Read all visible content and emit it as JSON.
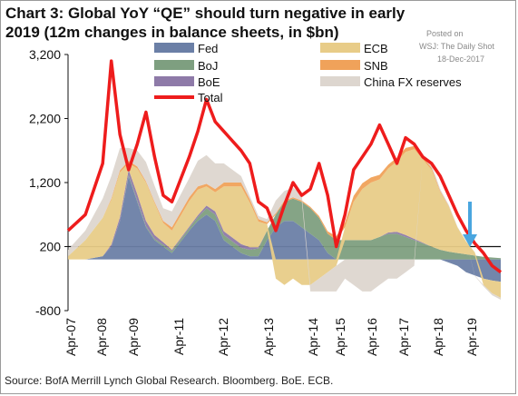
{
  "header": {
    "title": "Chart 3: Global YoY “QE” should turn negative in early 2019 (12m changes in balance sheets, in $bn)"
  },
  "watermark": {
    "posted": "Posted on",
    "outlet": "WSJ: The Daily Shot",
    "date": "18-Dec-2017"
  },
  "footer": {
    "source": "Source: BofA Merrill Lynch Global Research. Bloomberg. BoE. ECB."
  },
  "colors": {
    "fed": "#6b7fa6",
    "boj": "#7e9f80",
    "boe": "#8e7aa8",
    "ecb": "#e8cc88",
    "snb": "#f0a25a",
    "china": "#ddd6cf",
    "total": "#ee1c1c",
    "arrow": "#4aa6df"
  },
  "chart_data": {
    "type": "area",
    "stacked": true,
    "title": "Chart 3: Global YoY “QE” should turn negative in early 2019 (12m changes in balance sheets, in $bn)",
    "xlabel": "",
    "ylabel": "",
    "ylim": [
      -800,
      3200
    ],
    "yticks": [
      -800,
      200,
      1200,
      2200,
      3200
    ],
    "ytick_labels": [
      "-800",
      "200",
      "1,200",
      "2,200",
      "3,200"
    ],
    "x_tick_labels": [
      "Apr-07",
      "Apr-08",
      "Apr-09",
      "Apr-11",
      "Apr-12",
      "Apr-13",
      "Apr-14",
      "Apr-15",
      "Apr-16",
      "Apr-17",
      "Apr-18",
      "Apr-19"
    ],
    "legend": {
      "placement": "top",
      "entries": [
        "Fed",
        "BoJ",
        "BoE",
        "Total",
        "ECB",
        "SNB",
        "China FX reserves"
      ]
    },
    "annotation": "down arrow near Apr-19",
    "x": [
      "2007-04",
      "2007-10",
      "2008-04",
      "2008-07",
      "2008-10",
      "2009-01",
      "2009-04",
      "2009-07",
      "2009-10",
      "2010-01",
      "2010-04",
      "2010-10",
      "2011-01",
      "2011-04",
      "2011-07",
      "2011-10",
      "2012-04",
      "2012-07",
      "2012-10",
      "2013-01",
      "2013-04",
      "2013-07",
      "2013-10",
      "2014-01",
      "2014-04",
      "2014-07",
      "2014-10",
      "2015-01",
      "2015-04",
      "2015-07",
      "2015-10",
      "2016-01",
      "2016-04",
      "2016-07",
      "2016-10",
      "2017-01",
      "2017-04",
      "2017-07",
      "2017-10",
      "2018-01",
      "2018-04",
      "2018-07",
      "2018-10",
      "2019-01",
      "2019-04",
      "2019-07",
      "2019-10"
    ],
    "series": [
      {
        "name": "Fed",
        "values": [
          0,
          0,
          50,
          200,
          600,
          1300,
          900,
          500,
          300,
          200,
          100,
          450,
          600,
          700,
          600,
          300,
          100,
          50,
          50,
          300,
          500,
          600,
          600,
          500,
          400,
          300,
          100,
          0,
          0,
          0,
          0,
          0,
          0,
          0,
          0,
          0,
          0,
          0,
          0,
          0,
          -50,
          -100,
          -200,
          -250,
          -300,
          -330,
          -350
        ]
      },
      {
        "name": "BoJ",
        "values": [
          0,
          0,
          0,
          0,
          0,
          20,
          20,
          20,
          20,
          30,
          30,
          40,
          60,
          100,
          100,
          80,
          80,
          100,
          120,
          150,
          200,
          300,
          350,
          400,
          400,
          350,
          300,
          300,
          300,
          300,
          300,
          300,
          350,
          400,
          400,
          350,
          300,
          250,
          200,
          150,
          120,
          100,
          80,
          60,
          40,
          30,
          20
        ]
      },
      {
        "name": "BoE",
        "values": [
          0,
          0,
          0,
          30,
          60,
          80,
          100,
          80,
          60,
          40,
          20,
          20,
          30,
          40,
          50,
          60,
          60,
          40,
          20,
          0,
          0,
          0,
          0,
          0,
          0,
          0,
          0,
          0,
          0,
          0,
          0,
          0,
          0,
          20,
          30,
          30,
          20,
          10,
          0,
          0,
          0,
          0,
          0,
          0,
          0,
          0,
          0
        ]
      },
      {
        "name": "ECB",
        "values": [
          50,
          300,
          600,
          700,
          700,
          100,
          400,
          600,
          500,
          300,
          300,
          400,
          400,
          300,
          300,
          700,
          900,
          700,
          400,
          100,
          -300,
          -400,
          -300,
          -400,
          -400,
          -300,
          -200,
          -100,
          200,
          600,
          800,
          900,
          900,
          1000,
          1100,
          1300,
          1400,
          1300,
          1200,
          900,
          700,
          400,
          200,
          50,
          -100,
          -200,
          -250
        ]
      },
      {
        "name": "SNB",
        "values": [
          0,
          0,
          0,
          20,
          30,
          40,
          30,
          20,
          20,
          30,
          50,
          60,
          50,
          40,
          50,
          60,
          60,
          50,
          40,
          30,
          20,
          20,
          20,
          20,
          20,
          30,
          40,
          60,
          80,
          90,
          90,
          80,
          70,
          60,
          60,
          60,
          50,
          40,
          30,
          20,
          10,
          0,
          0,
          0,
          0,
          0,
          0
        ]
      },
      {
        "name": "China FX reserves",
        "values": [
          100,
          150,
          300,
          350,
          350,
          200,
          250,
          300,
          250,
          200,
          250,
          300,
          400,
          450,
          400,
          300,
          100,
          50,
          50,
          50,
          200,
          150,
          150,
          100,
          -100,
          -200,
          -300,
          -400,
          -300,
          -400,
          -500,
          -500,
          -400,
          -300,
          -300,
          -200,
          -100,
          0,
          50,
          30,
          20,
          10,
          0,
          -10,
          -20,
          -30,
          -30
        ]
      }
    ],
    "total": {
      "name": "Total",
      "values": [
        250,
        500,
        1300,
        2900,
        1750,
        1200,
        1600,
        2100,
        1400,
        800,
        700,
        1400,
        1800,
        2300,
        1950,
        1800,
        1500,
        1300,
        700,
        600,
        250,
        650,
        1000,
        800,
        900,
        1300,
        800,
        0,
        500,
        1200,
        1400,
        1600,
        1900,
        1600,
        1300,
        1700,
        1600,
        1400,
        1300,
        1100,
        800,
        500,
        250,
        50,
        -100,
        -300,
        -400
      ]
    }
  }
}
